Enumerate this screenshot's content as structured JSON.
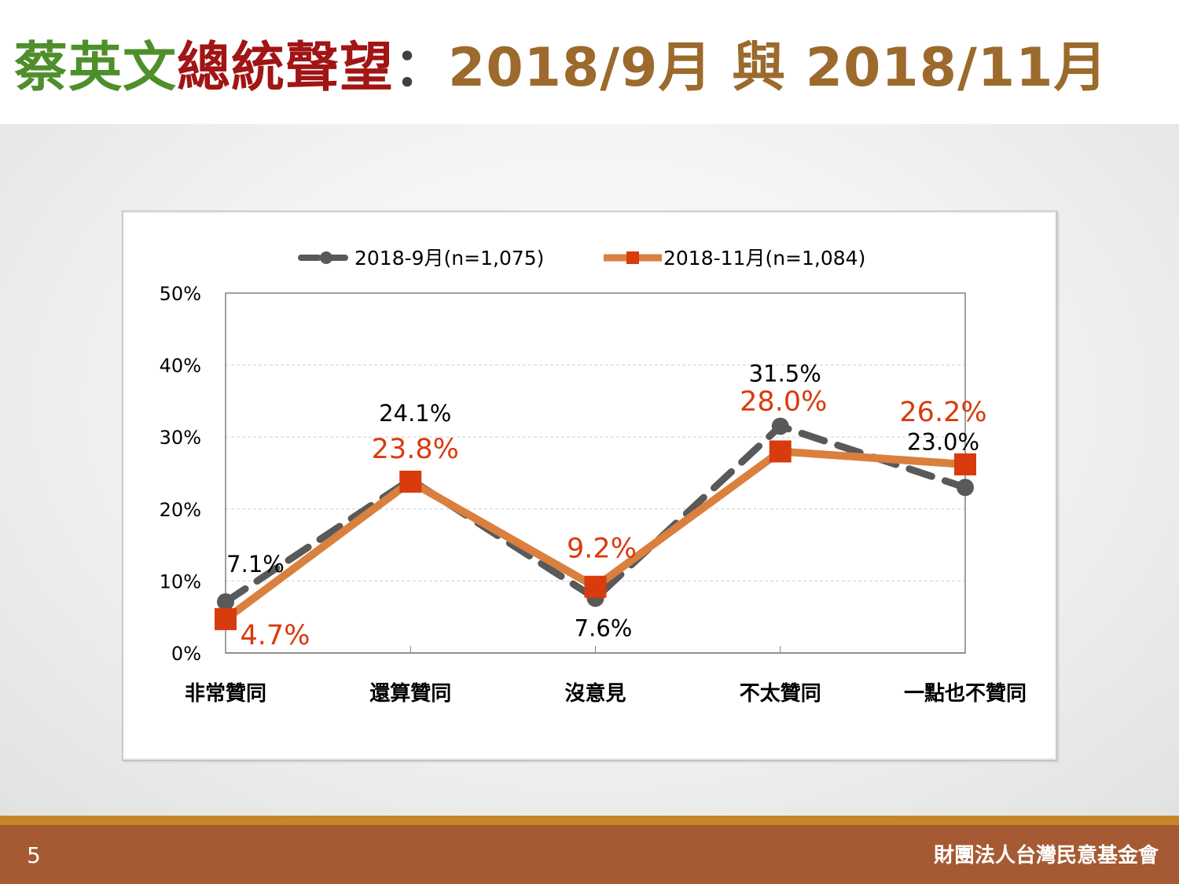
{
  "title": {
    "part1": "蔡英文",
    "part2": "總統聲望",
    "part3": "：",
    "part4": "2018/9月 與 2018/11月",
    "colors": {
      "part1": "#4e8f2c",
      "part2": "#a11515",
      "part3": "#404040",
      "part4": "#9b6a2c"
    }
  },
  "footer": {
    "page_number": "5",
    "org": "財團法人台灣民意基金會"
  },
  "chart_data": {
    "type": "line",
    "categories": [
      "非常贊同",
      "還算贊同",
      "沒意見",
      "不太贊同",
      "一點也不贊同"
    ],
    "ylim": [
      0,
      50
    ],
    "yticks": [
      0,
      10,
      20,
      30,
      40,
      50
    ],
    "ytick_labels": [
      "0%",
      "10%",
      "20%",
      "30%",
      "40%",
      "50%"
    ],
    "grid": true,
    "legend": "top",
    "series": [
      {
        "name": "2018-9月(n=1,075)",
        "values": [
          7.1,
          24.1,
          7.6,
          31.5,
          23.0
        ],
        "labels": [
          "7.1%",
          "24.1%",
          "7.6%",
          "31.5%",
          "23.0%"
        ],
        "color": "#595959",
        "style": "dashed",
        "marker": "circle"
      },
      {
        "name": "2018-11月(n=1,084)",
        "values": [
          4.7,
          23.8,
          9.2,
          28.0,
          26.2
        ],
        "labels": [
          "4.7%",
          "23.8%",
          "9.2%",
          "28.0%",
          "26.2%"
        ],
        "color": "#d9803f",
        "marker_color": "#d83b0d",
        "label_color": "#d83b0d",
        "style": "solid",
        "marker": "square"
      }
    ]
  }
}
